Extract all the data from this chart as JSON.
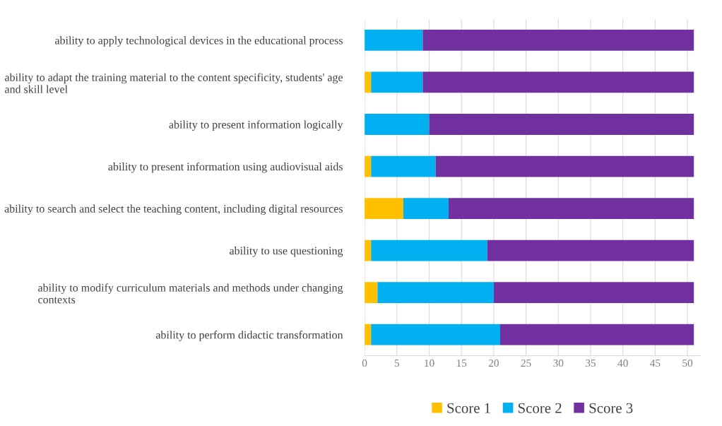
{
  "chart_data": {
    "type": "bar",
    "orientation": "horizontal",
    "stacked": true,
    "categories": [
      "ability to apply technological devices in the educational process",
      "ability to adapt the training material to the content specificity, students' age and skill level",
      "ability to present information logically",
      "ability to present information using audiovisual aids",
      "ability to search and select the teaching content, including digital resources",
      "ability to use questioning",
      "ability to modify curriculum materials and methods under changing contexts",
      "ability to perform didactic transformation"
    ],
    "series": [
      {
        "name": "Score 1",
        "color": "#ffc000",
        "values": [
          0,
          1,
          0,
          1,
          6,
          1,
          2,
          1
        ]
      },
      {
        "name": "Score 2",
        "color": "#00b0f0",
        "values": [
          9,
          8,
          10,
          10,
          7,
          18,
          18,
          20
        ]
      },
      {
        "name": "Score 3",
        "color": "#7030a0",
        "values": [
          42,
          42,
          41,
          40,
          38,
          32,
          31,
          30
        ]
      }
    ],
    "xlim": [
      0,
      52
    ],
    "xticks": [
      0,
      5,
      10,
      15,
      20,
      25,
      30,
      35,
      40,
      45,
      50
    ],
    "grid": "x",
    "legend": "bottom"
  }
}
